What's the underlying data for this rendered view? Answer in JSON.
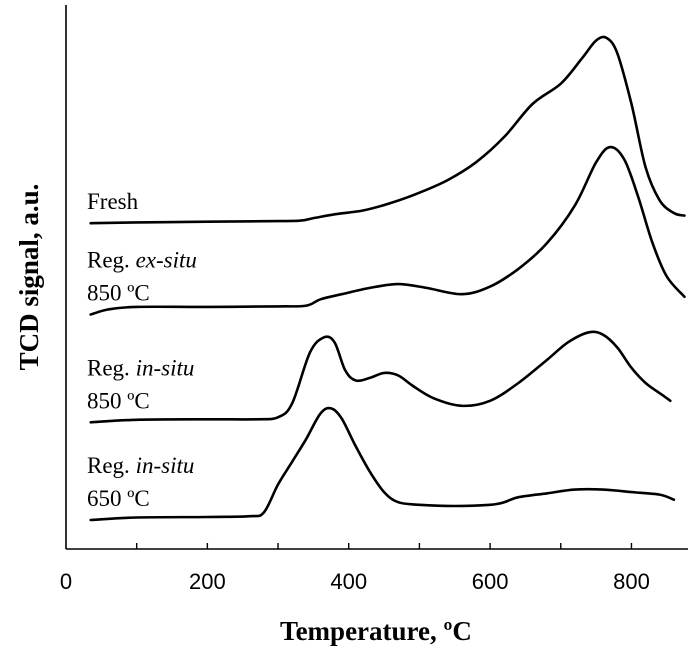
{
  "chart_data": {
    "type": "line",
    "xlabel": "Temperature, ºC",
    "ylabel": "TCD signal, a.u.",
    "xlim": [
      0,
      880
    ],
    "x_ticks": [
      "0",
      "200",
      "400",
      "600",
      "800"
    ],
    "grid": false,
    "legend": "inline labels left of curves",
    "series": [
      {
        "name": "Fresh",
        "label_lines": [
          [
            {
              "t": "Fresh",
              "i": false
            }
          ]
        ],
        "points": [
          [
            35,
            0.03
          ],
          [
            100,
            0.033
          ],
          [
            200,
            0.036
          ],
          [
            280,
            0.038
          ],
          [
            330,
            0.04
          ],
          [
            350,
            0.05
          ],
          [
            380,
            0.065
          ],
          [
            420,
            0.08
          ],
          [
            460,
            0.11
          ],
          [
            500,
            0.15
          ],
          [
            540,
            0.2
          ],
          [
            580,
            0.27
          ],
          [
            620,
            0.37
          ],
          [
            660,
            0.5
          ],
          [
            700,
            0.58
          ],
          [
            730,
            0.68
          ],
          [
            750,
            0.75
          ],
          [
            765,
            0.76
          ],
          [
            780,
            0.7
          ],
          [
            800,
            0.5
          ],
          [
            820,
            0.25
          ],
          [
            840,
            0.12
          ],
          [
            860,
            0.07
          ],
          [
            875,
            0.06
          ]
        ]
      },
      {
        "name": "Reg. ex-situ 850 ºC",
        "label_lines": [
          [
            {
              "t": "Reg. ",
              "i": false
            },
            {
              "t": "ex-situ",
              "i": true
            }
          ],
          [
            {
              "t": "850 ºC",
              "i": false
            }
          ]
        ],
        "points": [
          [
            35,
            -0.33
          ],
          [
            60,
            -0.31
          ],
          [
            100,
            -0.3
          ],
          [
            200,
            -0.3
          ],
          [
            300,
            -0.298
          ],
          [
            340,
            -0.295
          ],
          [
            360,
            -0.27
          ],
          [
            390,
            -0.25
          ],
          [
            430,
            -0.225
          ],
          [
            470,
            -0.21
          ],
          [
            510,
            -0.225
          ],
          [
            560,
            -0.25
          ],
          [
            600,
            -0.22
          ],
          [
            640,
            -0.15
          ],
          [
            680,
            -0.05
          ],
          [
            720,
            0.1
          ],
          [
            750,
            0.27
          ],
          [
            770,
            0.33
          ],
          [
            790,
            0.28
          ],
          [
            810,
            0.13
          ],
          [
            830,
            -0.05
          ],
          [
            850,
            -0.18
          ],
          [
            875,
            -0.26
          ]
        ]
      },
      {
        "name": "Reg. in-situ 850 ºC",
        "label_lines": [
          [
            {
              "t": "Reg. ",
              "i": false
            },
            {
              "t": "in-situ",
              "i": true
            }
          ],
          [
            {
              "t": "850 ºC",
              "i": false
            }
          ]
        ],
        "points": [
          [
            35,
            -0.755
          ],
          [
            100,
            -0.745
          ],
          [
            200,
            -0.743
          ],
          [
            270,
            -0.743
          ],
          [
            300,
            -0.735
          ],
          [
            320,
            -0.68
          ],
          [
            345,
            -0.48
          ],
          [
            365,
            -0.42
          ],
          [
            380,
            -0.44
          ],
          [
            395,
            -0.55
          ],
          [
            410,
            -0.59
          ],
          [
            430,
            -0.58
          ],
          [
            450,
            -0.56
          ],
          [
            470,
            -0.57
          ],
          [
            490,
            -0.61
          ],
          [
            520,
            -0.66
          ],
          [
            560,
            -0.69
          ],
          [
            600,
            -0.67
          ],
          [
            640,
            -0.6
          ],
          [
            680,
            -0.51
          ],
          [
            710,
            -0.44
          ],
          [
            740,
            -0.4
          ],
          [
            760,
            -0.41
          ],
          [
            780,
            -0.46
          ],
          [
            800,
            -0.54
          ],
          [
            820,
            -0.6
          ],
          [
            840,
            -0.64
          ],
          [
            855,
            -0.67
          ]
        ]
      },
      {
        "name": "Reg. in-situ 650 ºC",
        "label_lines": [
          [
            {
              "t": "Reg. ",
              "i": false
            },
            {
              "t": "in-situ",
              "i": true
            }
          ],
          [
            {
              "t": "650 ºC",
              "i": false
            }
          ]
        ],
        "points": [
          [
            35,
            -1.14
          ],
          [
            100,
            -1.13
          ],
          [
            200,
            -1.128
          ],
          [
            260,
            -1.125
          ],
          [
            280,
            -1.11
          ],
          [
            300,
            -1.0
          ],
          [
            320,
            -0.91
          ],
          [
            340,
            -0.82
          ],
          [
            360,
            -0.72
          ],
          [
            375,
            -0.7
          ],
          [
            390,
            -0.74
          ],
          [
            410,
            -0.85
          ],
          [
            430,
            -0.95
          ],
          [
            450,
            -1.03
          ],
          [
            470,
            -1.07
          ],
          [
            500,
            -1.08
          ],
          [
            550,
            -1.085
          ],
          [
            600,
            -1.08
          ],
          [
            620,
            -1.07
          ],
          [
            640,
            -1.05
          ],
          [
            680,
            -1.035
          ],
          [
            720,
            -1.02
          ],
          [
            760,
            -1.02
          ],
          [
            800,
            -1.03
          ],
          [
            840,
            -1.04
          ],
          [
            860,
            -1.06
          ]
        ]
      }
    ]
  }
}
